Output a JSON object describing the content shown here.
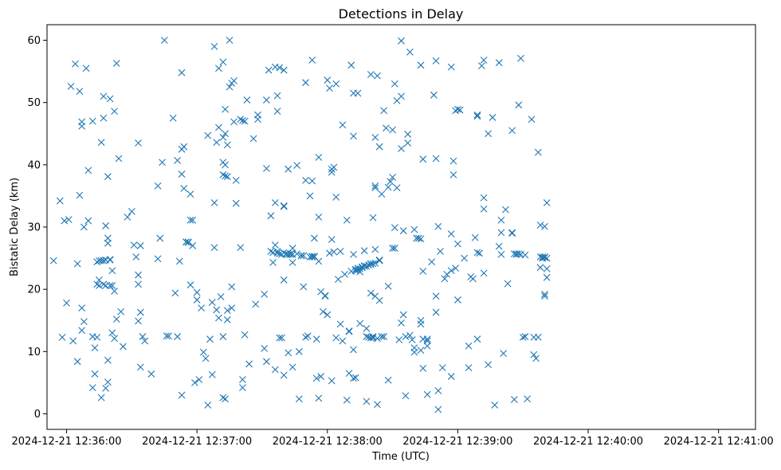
{
  "chart_data": {
    "type": "scatter",
    "title": "Detections in Delay",
    "xlabel": "Time (UTC)",
    "ylabel": "Bistatic Delay (km)",
    "x_unit": "seconds after 2024-12-21 12:36:00 UTC",
    "xlim": [
      -9,
      317
    ],
    "ylim": [
      -2.5,
      62.5
    ],
    "x_ticks": [
      0,
      60,
      120,
      180,
      240,
      300
    ],
    "x_tick_labels": [
      "2024-12-21 12:36:00",
      "2024-12-21 12:37:00",
      "2024-12-21 12:38:00",
      "2024-12-21 12:39:00",
      "2024-12-21 12:40:00",
      "2024-12-21 12:41:00"
    ],
    "y_ticks": [
      0,
      10,
      20,
      30,
      40,
      50,
      60
    ],
    "y_tick_labels": [
      "0",
      "10",
      "20",
      "30",
      "40",
      "50",
      "60"
    ],
    "marker": "x",
    "color": "#1f77b4",
    "grid": false,
    "points": [
      [
        -6,
        24.6
      ],
      [
        -3,
        34.2
      ],
      [
        -2,
        12.3
      ],
      [
        -1,
        31.0
      ],
      [
        0,
        17.8
      ],
      [
        1,
        31.2
      ],
      [
        2,
        52.6
      ],
      [
        3,
        11.7
      ],
      [
        4,
        56.2
      ],
      [
        5,
        24.1
      ],
      [
        5,
        8.4
      ],
      [
        6,
        35.1
      ],
      [
        6,
        51.8
      ],
      [
        7,
        46.9
      ],
      [
        7,
        46.2
      ],
      [
        7,
        17.0
      ],
      [
        7,
        13.4
      ],
      [
        8,
        30.0
      ],
      [
        8,
        14.8
      ],
      [
        9,
        55.5
      ],
      [
        10,
        39.1
      ],
      [
        10,
        31.0
      ],
      [
        12,
        12.4
      ],
      [
        12,
        47.0
      ],
      [
        12,
        4.2
      ],
      [
        13,
        10.6
      ],
      [
        13,
        6.4
      ],
      [
        14,
        12.3
      ],
      [
        14,
        24.4
      ],
      [
        14,
        20.8
      ],
      [
        15,
        20.6
      ],
      [
        15,
        24.6
      ],
      [
        15,
        21.5
      ],
      [
        16,
        43.6
      ],
      [
        16,
        2.6
      ],
      [
        16,
        24.6
      ],
      [
        17,
        51.0
      ],
      [
        17,
        47.5
      ],
      [
        17,
        20.8
      ],
      [
        17,
        24.6
      ],
      [
        18,
        30.2
      ],
      [
        18,
        20.6
      ],
      [
        18,
        24.7
      ],
      [
        18,
        4.1
      ],
      [
        19,
        38.1
      ],
      [
        19,
        27.4
      ],
      [
        19,
        28.2
      ],
      [
        19,
        8.6
      ],
      [
        19,
        5.1
      ],
      [
        20,
        24.8
      ],
      [
        20,
        20.6
      ],
      [
        20,
        50.6
      ],
      [
        20,
        24.7
      ],
      [
        21,
        13.0
      ],
      [
        21,
        20.6
      ],
      [
        21,
        23.0
      ],
      [
        22,
        48.6
      ],
      [
        22,
        12.1
      ],
      [
        22,
        19.7
      ],
      [
        23,
        15.2
      ],
      [
        23,
        56.3
      ],
      [
        24,
        41.0
      ],
      [
        25,
        16.4
      ],
      [
        26,
        10.8
      ],
      [
        28,
        31.6
      ],
      [
        30,
        32.5
      ],
      [
        31,
        27.1
      ],
      [
        32,
        25.2
      ],
      [
        33,
        43.5
      ],
      [
        33,
        22.3
      ],
      [
        33,
        20.8
      ],
      [
        33,
        14.9
      ],
      [
        34,
        16.3
      ],
      [
        34,
        7.5
      ],
      [
        34,
        27.0
      ],
      [
        35,
        12.4
      ],
      [
        36,
        11.7
      ],
      [
        39,
        6.4
      ],
      [
        42,
        24.9
      ],
      [
        42,
        36.6
      ],
      [
        43,
        28.2
      ],
      [
        44,
        40.4
      ],
      [
        45,
        60.0
      ],
      [
        46,
        12.5
      ],
      [
        47,
        12.5
      ],
      [
        49,
        47.5
      ],
      [
        50,
        19.4
      ],
      [
        51,
        12.4
      ],
      [
        51,
        40.7
      ],
      [
        52,
        24.5
      ],
      [
        53,
        38.5
      ],
      [
        53,
        54.8
      ],
      [
        53,
        42.5
      ],
      [
        53,
        3.0
      ],
      [
        54,
        36.2
      ],
      [
        54,
        42.9
      ],
      [
        55,
        27.6
      ],
      [
        55,
        27.6
      ],
      [
        56,
        27.6
      ],
      [
        56,
        27.5
      ],
      [
        57,
        31.1
      ],
      [
        57,
        35.3
      ],
      [
        57,
        20.7
      ],
      [
        58,
        31.1
      ],
      [
        58,
        27.0
      ],
      [
        59,
        5.0
      ],
      [
        60,
        19.5
      ],
      [
        60,
        18.3
      ],
      [
        61,
        5.5
      ],
      [
        62,
        17.0
      ],
      [
        63,
        9.9
      ],
      [
        64,
        8.9
      ],
      [
        65,
        44.7
      ],
      [
        65,
        1.4
      ],
      [
        66,
        12.0
      ],
      [
        67,
        17.9
      ],
      [
        67,
        6.3
      ],
      [
        68,
        33.9
      ],
      [
        68,
        59.0
      ],
      [
        68,
        26.7
      ],
      [
        69,
        16.7
      ],
      [
        69,
        43.6
      ],
      [
        70,
        55.5
      ],
      [
        70,
        46.0
      ],
      [
        70,
        15.4
      ],
      [
        71,
        18.8
      ],
      [
        72,
        56.5
      ],
      [
        72,
        44.4
      ],
      [
        72,
        40.4
      ],
      [
        72,
        38.4
      ],
      [
        72,
        12.4
      ],
      [
        72,
        2.6
      ],
      [
        73,
        2.4
      ],
      [
        73,
        48.9
      ],
      [
        73,
        40.0
      ],
      [
        73,
        38.2
      ],
      [
        73,
        45.0
      ],
      [
        74,
        43.2
      ],
      [
        74,
        38.1
      ],
      [
        74,
        15.1
      ],
      [
        74,
        16.6
      ],
      [
        75,
        60.0
      ],
      [
        75,
        52.5
      ],
      [
        76,
        17.0
      ],
      [
        76,
        20.4
      ],
      [
        76,
        53.1
      ],
      [
        77,
        46.9
      ],
      [
        77,
        53.5
      ],
      [
        78,
        37.5
      ],
      [
        78,
        33.8
      ],
      [
        80,
        26.7
      ],
      [
        80,
        47.3
      ],
      [
        81,
        47.1
      ],
      [
        81,
        5.5
      ],
      [
        81,
        4.2
      ],
      [
        82,
        12.7
      ],
      [
        82,
        47.0
      ],
      [
        83,
        50.4
      ],
      [
        84,
        8.0
      ],
      [
        86,
        44.2
      ],
      [
        87,
        17.6
      ],
      [
        88,
        48.0
      ],
      [
        88,
        47.3
      ],
      [
        91,
        19.2
      ],
      [
        91,
        10.5
      ],
      [
        92,
        8.4
      ],
      [
        92,
        39.4
      ],
      [
        92,
        50.4
      ],
      [
        93,
        55.2
      ],
      [
        94,
        26.1
      ],
      [
        94,
        31.8
      ],
      [
        95,
        25.9
      ],
      [
        95,
        24.3
      ],
      [
        96,
        33.9
      ],
      [
        96,
        27.1
      ],
      [
        96,
        7.1
      ],
      [
        96,
        55.7
      ],
      [
        97,
        25.8
      ],
      [
        97,
        26.1
      ],
      [
        97,
        51.1
      ],
      [
        97,
        48.6
      ],
      [
        98,
        25.7
      ],
      [
        98,
        12.2
      ],
      [
        98,
        55.6
      ],
      [
        99,
        25.6
      ],
      [
        99,
        12.2
      ],
      [
        100,
        25.9
      ],
      [
        100,
        21.5
      ],
      [
        100,
        33.4
      ],
      [
        100,
        33.3
      ],
      [
        100,
        6.2
      ],
      [
        100,
        55.2
      ],
      [
        101,
        25.7
      ],
      [
        101,
        25.6
      ],
      [
        102,
        25.6
      ],
      [
        102,
        9.8
      ],
      [
        102,
        39.3
      ],
      [
        103,
        25.6
      ],
      [
        103,
        25.7
      ],
      [
        104,
        26.6
      ],
      [
        104,
        25.6
      ],
      [
        104,
        24.3
      ],
      [
        104,
        7.5
      ],
      [
        106,
        25.7
      ],
      [
        106,
        39.9
      ],
      [
        107,
        10.0
      ],
      [
        107,
        2.4
      ],
      [
        108,
        25.4
      ],
      [
        108,
        25.4
      ],
      [
        109,
        20.4
      ],
      [
        109,
        25.4
      ],
      [
        110,
        53.2
      ],
      [
        110,
        37.5
      ],
      [
        110,
        12.3
      ],
      [
        111,
        12.5
      ],
      [
        112,
        25.2
      ],
      [
        112,
        35.0
      ],
      [
        113,
        25.3
      ],
      [
        113,
        56.8
      ],
      [
        113,
        25.2
      ],
      [
        113,
        37.4
      ],
      [
        114,
        25.3
      ],
      [
        114,
        28.2
      ],
      [
        114,
        25.2
      ],
      [
        115,
        5.7
      ],
      [
        115,
        12.0
      ],
      [
        116,
        41.2
      ],
      [
        116,
        24.5
      ],
      [
        116,
        2.5
      ],
      [
        116,
        31.6
      ],
      [
        117,
        6.0
      ],
      [
        117,
        19.6
      ],
      [
        118,
        16.4
      ],
      [
        119,
        19.0
      ],
      [
        119,
        18.9
      ],
      [
        120,
        53.6
      ],
      [
        120,
        15.9
      ],
      [
        121,
        25.8
      ],
      [
        121,
        52.3
      ],
      [
        122,
        39.3
      ],
      [
        122,
        38.8
      ],
      [
        122,
        28.0
      ],
      [
        122,
        5.3
      ],
      [
        123,
        39.6
      ],
      [
        123,
        26.0
      ],
      [
        124,
        53.0
      ],
      [
        124,
        34.8
      ],
      [
        124,
        12.2
      ],
      [
        125,
        21.6
      ],
      [
        126,
        26.1
      ],
      [
        126,
        14.4
      ],
      [
        127,
        11.7
      ],
      [
        127,
        46.4
      ],
      [
        128,
        22.4
      ],
      [
        129,
        31.1
      ],
      [
        129,
        2.2
      ],
      [
        130,
        13.2
      ],
      [
        130,
        6.5
      ],
      [
        130,
        13.3
      ],
      [
        131,
        56.0
      ],
      [
        131,
        22.9
      ],
      [
        132,
        5.7
      ],
      [
        132,
        44.6
      ],
      [
        132,
        10.3
      ],
      [
        132,
        25.6
      ],
      [
        132,
        51.5
      ],
      [
        133,
        23.0
      ],
      [
        133,
        23.2
      ],
      [
        133,
        5.8
      ],
      [
        134,
        23.1
      ],
      [
        134,
        51.5
      ],
      [
        134,
        23.4
      ],
      [
        135,
        23.3
      ],
      [
        135,
        14.5
      ],
      [
        135,
        22.8
      ],
      [
        136,
        23.5
      ],
      [
        136,
        23.6
      ],
      [
        137,
        26.2
      ],
      [
        137,
        23.7
      ],
      [
        137,
        23.8
      ],
      [
        138,
        13.7
      ],
      [
        138,
        23.7
      ],
      [
        138,
        12.4
      ],
      [
        138,
        2.0
      ],
      [
        139,
        12.3
      ],
      [
        139,
        23.9
      ],
      [
        140,
        24.1
      ],
      [
        140,
        24.0
      ],
      [
        140,
        54.5
      ],
      [
        140,
        12.2
      ],
      [
        140,
        19.4
      ],
      [
        141,
        12.2
      ],
      [
        141,
        31.5
      ],
      [
        141,
        12.4
      ],
      [
        141,
        24.1
      ],
      [
        142,
        24.2
      ],
      [
        142,
        26.4
      ],
      [
        142,
        36.3
      ],
      [
        142,
        18.9
      ],
      [
        142,
        36.6
      ],
      [
        142,
        44.4
      ],
      [
        143,
        1.5
      ],
      [
        143,
        12.1
      ],
      [
        143,
        54.3
      ],
      [
        144,
        24.6
      ],
      [
        144,
        42.9
      ],
      [
        144,
        24.7
      ],
      [
        144,
        18.2
      ],
      [
        145,
        12.4
      ],
      [
        145,
        35.3
      ],
      [
        146,
        48.7
      ],
      [
        146,
        12.4
      ],
      [
        147,
        45.9
      ],
      [
        148,
        5.4
      ],
      [
        148,
        20.5
      ],
      [
        148,
        36.4
      ],
      [
        149,
        37.3
      ],
      [
        150,
        38.0
      ],
      [
        150,
        26.6
      ],
      [
        150,
        45.6
      ],
      [
        151,
        26.6
      ],
      [
        151,
        29.9
      ],
      [
        151,
        53.0
      ],
      [
        152,
        50.3
      ],
      [
        152,
        36.3
      ],
      [
        153,
        11.9
      ],
      [
        154,
        59.9
      ],
      [
        154,
        42.6
      ],
      [
        154,
        14.6
      ],
      [
        154,
        51.0
      ],
      [
        155,
        29.4
      ],
      [
        155,
        15.9
      ],
      [
        156,
        12.4
      ],
      [
        156,
        2.9
      ],
      [
        157,
        44.9
      ],
      [
        157,
        43.5
      ],
      [
        158,
        12.6
      ],
      [
        158,
        58.1
      ],
      [
        159,
        11.9
      ],
      [
        160,
        10.6
      ],
      [
        160,
        29.6
      ],
      [
        160,
        9.9
      ],
      [
        161,
        28.2
      ],
      [
        162,
        28.2
      ],
      [
        163,
        15.0
      ],
      [
        163,
        28.1
      ],
      [
        163,
        14.4
      ],
      [
        163,
        10.2
      ],
      [
        163,
        56.0
      ],
      [
        164,
        22.9
      ],
      [
        164,
        7.3
      ],
      [
        164,
        40.9
      ],
      [
        164,
        12.0
      ],
      [
        166,
        12.0
      ],
      [
        166,
        3.1
      ],
      [
        166,
        11.7
      ],
      [
        166,
        10.9
      ],
      [
        168,
        24.4
      ],
      [
        169,
        51.2
      ],
      [
        170,
        16.3
      ],
      [
        170,
        18.9
      ],
      [
        170,
        41.0
      ],
      [
        170,
        56.7
      ],
      [
        171,
        30.1
      ],
      [
        171,
        3.7
      ],
      [
        171,
        0.7
      ],
      [
        172,
        26.1
      ],
      [
        173,
        7.4
      ],
      [
        174,
        21.7
      ],
      [
        175,
        22.4
      ],
      [
        177,
        55.7
      ],
      [
        177,
        23.0
      ],
      [
        177,
        6.0
      ],
      [
        177,
        28.9
      ],
      [
        178,
        40.6
      ],
      [
        178,
        38.4
      ],
      [
        179,
        23.4
      ],
      [
        179,
        48.7
      ],
      [
        180,
        27.3
      ],
      [
        180,
        48.9
      ],
      [
        180,
        18.3
      ],
      [
        181,
        48.8
      ],
      [
        183,
        25.0
      ],
      [
        185,
        10.9
      ],
      [
        185,
        7.4
      ],
      [
        186,
        22.0
      ],
      [
        187,
        21.7
      ],
      [
        188,
        28.3
      ],
      [
        189,
        47.8
      ],
      [
        189,
        48.0
      ],
      [
        189,
        12.0
      ],
      [
        189,
        25.9
      ],
      [
        190,
        25.8
      ],
      [
        191,
        55.9
      ],
      [
        192,
        56.8
      ],
      [
        192,
        34.7
      ],
      [
        192,
        22.6
      ],
      [
        192,
        32.9
      ],
      [
        194,
        45.0
      ],
      [
        194,
        7.9
      ],
      [
        196,
        47.6
      ],
      [
        197,
        1.4
      ],
      [
        199,
        26.9
      ],
      [
        199,
        56.4
      ],
      [
        200,
        29.1
      ],
      [
        200,
        31.1
      ],
      [
        200,
        25.6
      ],
      [
        201,
        9.7
      ],
      [
        202,
        32.8
      ],
      [
        203,
        20.9
      ],
      [
        205,
        45.5
      ],
      [
        205,
        29.0
      ],
      [
        205,
        29.1
      ],
      [
        206,
        2.3
      ],
      [
        206,
        25.7
      ],
      [
        207,
        25.6
      ],
      [
        207,
        25.7
      ],
      [
        208,
        49.6
      ],
      [
        208,
        25.7
      ],
      [
        209,
        25.6
      ],
      [
        209,
        57.1
      ],
      [
        210,
        12.3
      ],
      [
        211,
        12.4
      ],
      [
        211,
        25.5
      ],
      [
        212,
        2.4
      ],
      [
        214,
        47.3
      ],
      [
        215,
        12.3
      ],
      [
        215,
        9.5
      ],
      [
        216,
        8.9
      ],
      [
        217,
        42.0
      ],
      [
        217,
        12.3
      ],
      [
        218,
        30.3
      ],
      [
        218,
        23.5
      ],
      [
        218,
        25.2
      ],
      [
        219,
        25.2
      ],
      [
        219,
        25.0
      ],
      [
        220,
        25.1
      ],
      [
        220,
        30.1
      ],
      [
        220,
        25.2
      ],
      [
        220,
        19.2
      ],
      [
        220,
        18.9
      ],
      [
        221,
        23.3
      ],
      [
        221,
        25.0
      ],
      [
        221,
        21.9
      ],
      [
        221,
        33.9
      ]
    ]
  }
}
